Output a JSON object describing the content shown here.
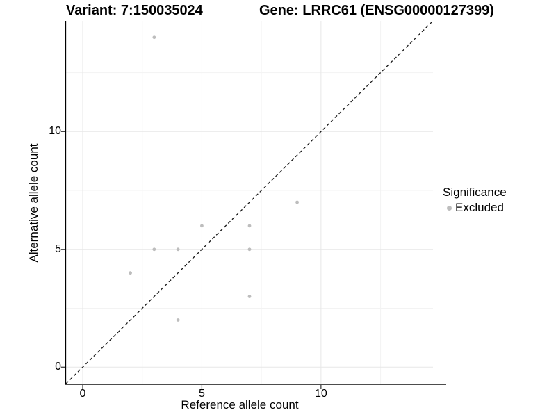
{
  "titles": {
    "variant": "Variant: 7:150035024",
    "gene": "Gene: LRRC61 (ENSG00000127399)"
  },
  "axes": {
    "x": {
      "label": "Reference allele count",
      "major_ticks": [
        0,
        5,
        10
      ],
      "minor_ticks": [
        2.5,
        7.5,
        12.5
      ]
    },
    "y": {
      "label": "Alternative allele count",
      "major_ticks": [
        0,
        5,
        10
      ],
      "minor_ticks": [
        2.5,
        7.5,
        12.5
      ]
    }
  },
  "legend": {
    "title": "Significance",
    "items": [
      {
        "label": "Excluded",
        "color": "#bdbdbd"
      }
    ]
  },
  "chart_data": {
    "type": "scatter",
    "title": "Variant: 7:150035024 / Gene: LRRC61 (ENSG00000127399)",
    "xlabel": "Reference allele count",
    "ylabel": "Alternative allele count",
    "xlim": [
      -0.7,
      14.7
    ],
    "ylim": [
      -0.7,
      14.7
    ],
    "grid": true,
    "legend_position": "right",
    "series": [
      {
        "name": "Excluded",
        "color": "#bdbdbd",
        "marker": "circle",
        "points": [
          [
            2,
            4
          ],
          [
            3,
            5
          ],
          [
            3,
            14
          ],
          [
            4,
            2
          ],
          [
            4,
            5
          ],
          [
            5,
            6
          ],
          [
            7,
            3
          ],
          [
            7,
            5
          ],
          [
            7,
            6
          ],
          [
            9,
            7
          ]
        ]
      }
    ],
    "reference_line": {
      "type": "identity",
      "linestyle": "dashed",
      "color": "#1a1a1a"
    }
  },
  "colors": {
    "background": "#ffffff",
    "grid_major": "#e7e7e7",
    "grid_minor": "#f3f3f3",
    "axis_line_y": "#000000",
    "axis_line_x": "#4d4d4d",
    "tick_mark": "#333333",
    "point": "#bdbdbd",
    "text": "#000000"
  }
}
